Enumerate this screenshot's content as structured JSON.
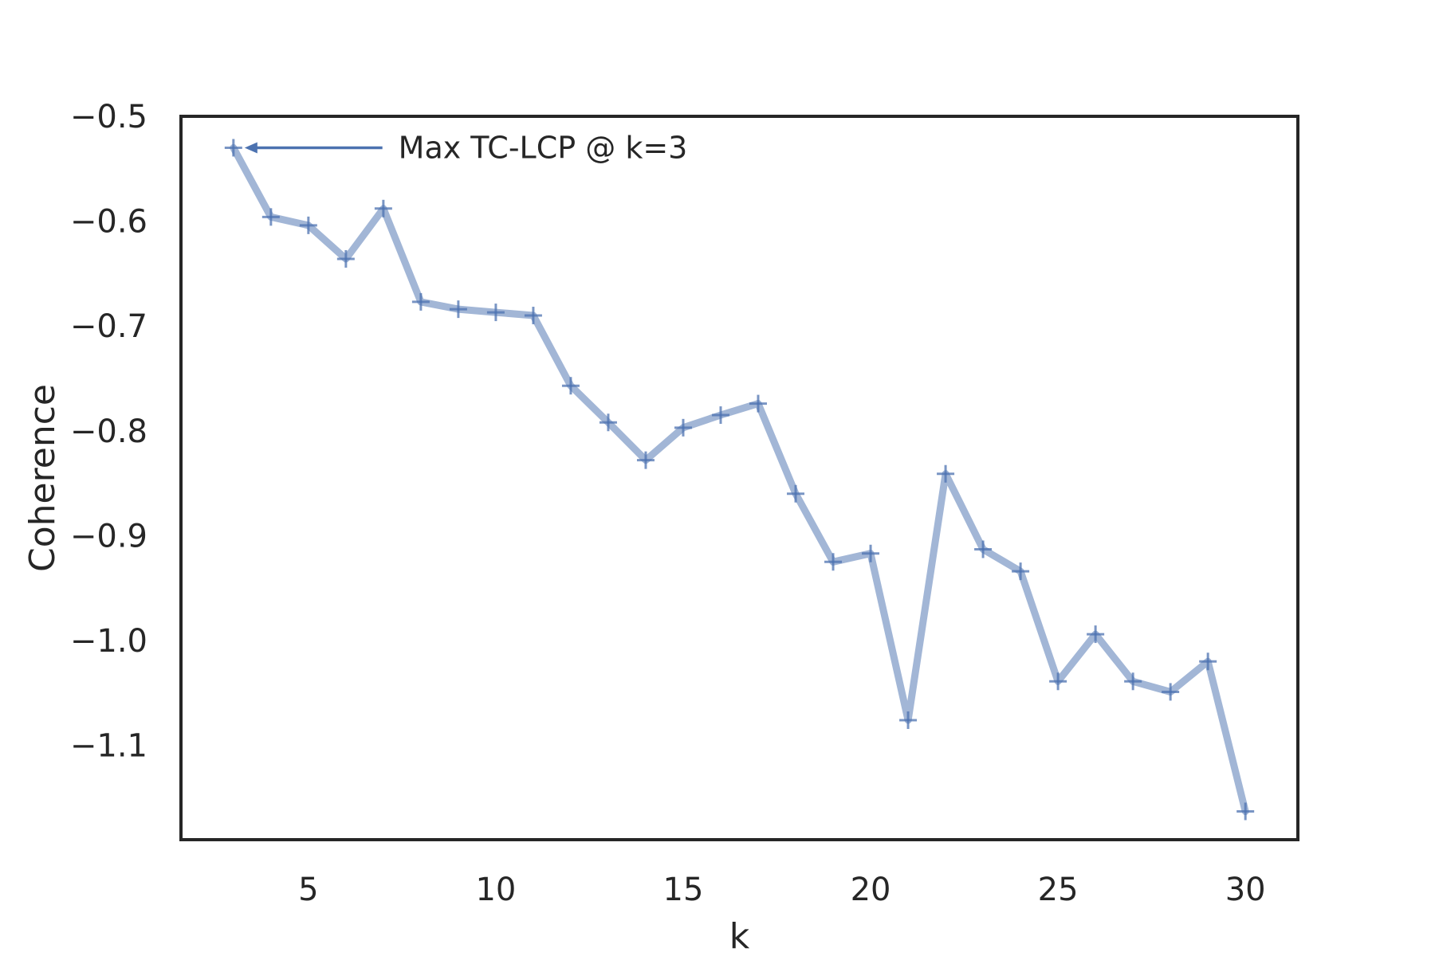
{
  "chart_data": {
    "type": "line",
    "title": "",
    "xlabel": "k",
    "ylabel": "Coherence",
    "xlim": [
      1.6,
      31.4
    ],
    "ylim": [
      -1.19,
      -0.5
    ],
    "xticks": [
      5,
      10,
      15,
      20,
      25,
      30
    ],
    "yticks": [
      -0.5,
      -0.6,
      -0.7,
      -0.8,
      -0.9,
      -1.0,
      -1.1
    ],
    "ytick_labels": [
      "−0.5",
      "−0.6",
      "−0.7",
      "−0.8",
      "−0.9",
      "−1.0",
      "−1.1"
    ],
    "grid": false,
    "marker": "plus",
    "line_color": "#a2b6d6",
    "marker_color": "#4c72b0",
    "series": [
      {
        "x": [
          3,
          4,
          5,
          6,
          7,
          8,
          9,
          10,
          11,
          12,
          13,
          14,
          15,
          16,
          17,
          18,
          19,
          20,
          21,
          22,
          23,
          24,
          25,
          26,
          27,
          28,
          29,
          30
        ],
        "values": [
          -0.53,
          -0.596,
          -0.604,
          -0.636,
          -0.588,
          -0.677,
          -0.684,
          -0.687,
          -0.69,
          -0.757,
          -0.792,
          -0.828,
          -0.797,
          -0.785,
          -0.774,
          -0.86,
          -0.925,
          -0.917,
          -1.076,
          -0.841,
          -0.913,
          -0.934,
          -1.039,
          -0.994,
          -1.039,
          -1.049,
          -1.02,
          -1.163
        ]
      }
    ],
    "annotations": [
      {
        "text": "Max TC-LCP @ k=3",
        "x": 3,
        "y": -0.53,
        "text_x": 7.4,
        "text_y": -0.53,
        "arrow_color": "#4c72b0"
      }
    ]
  }
}
